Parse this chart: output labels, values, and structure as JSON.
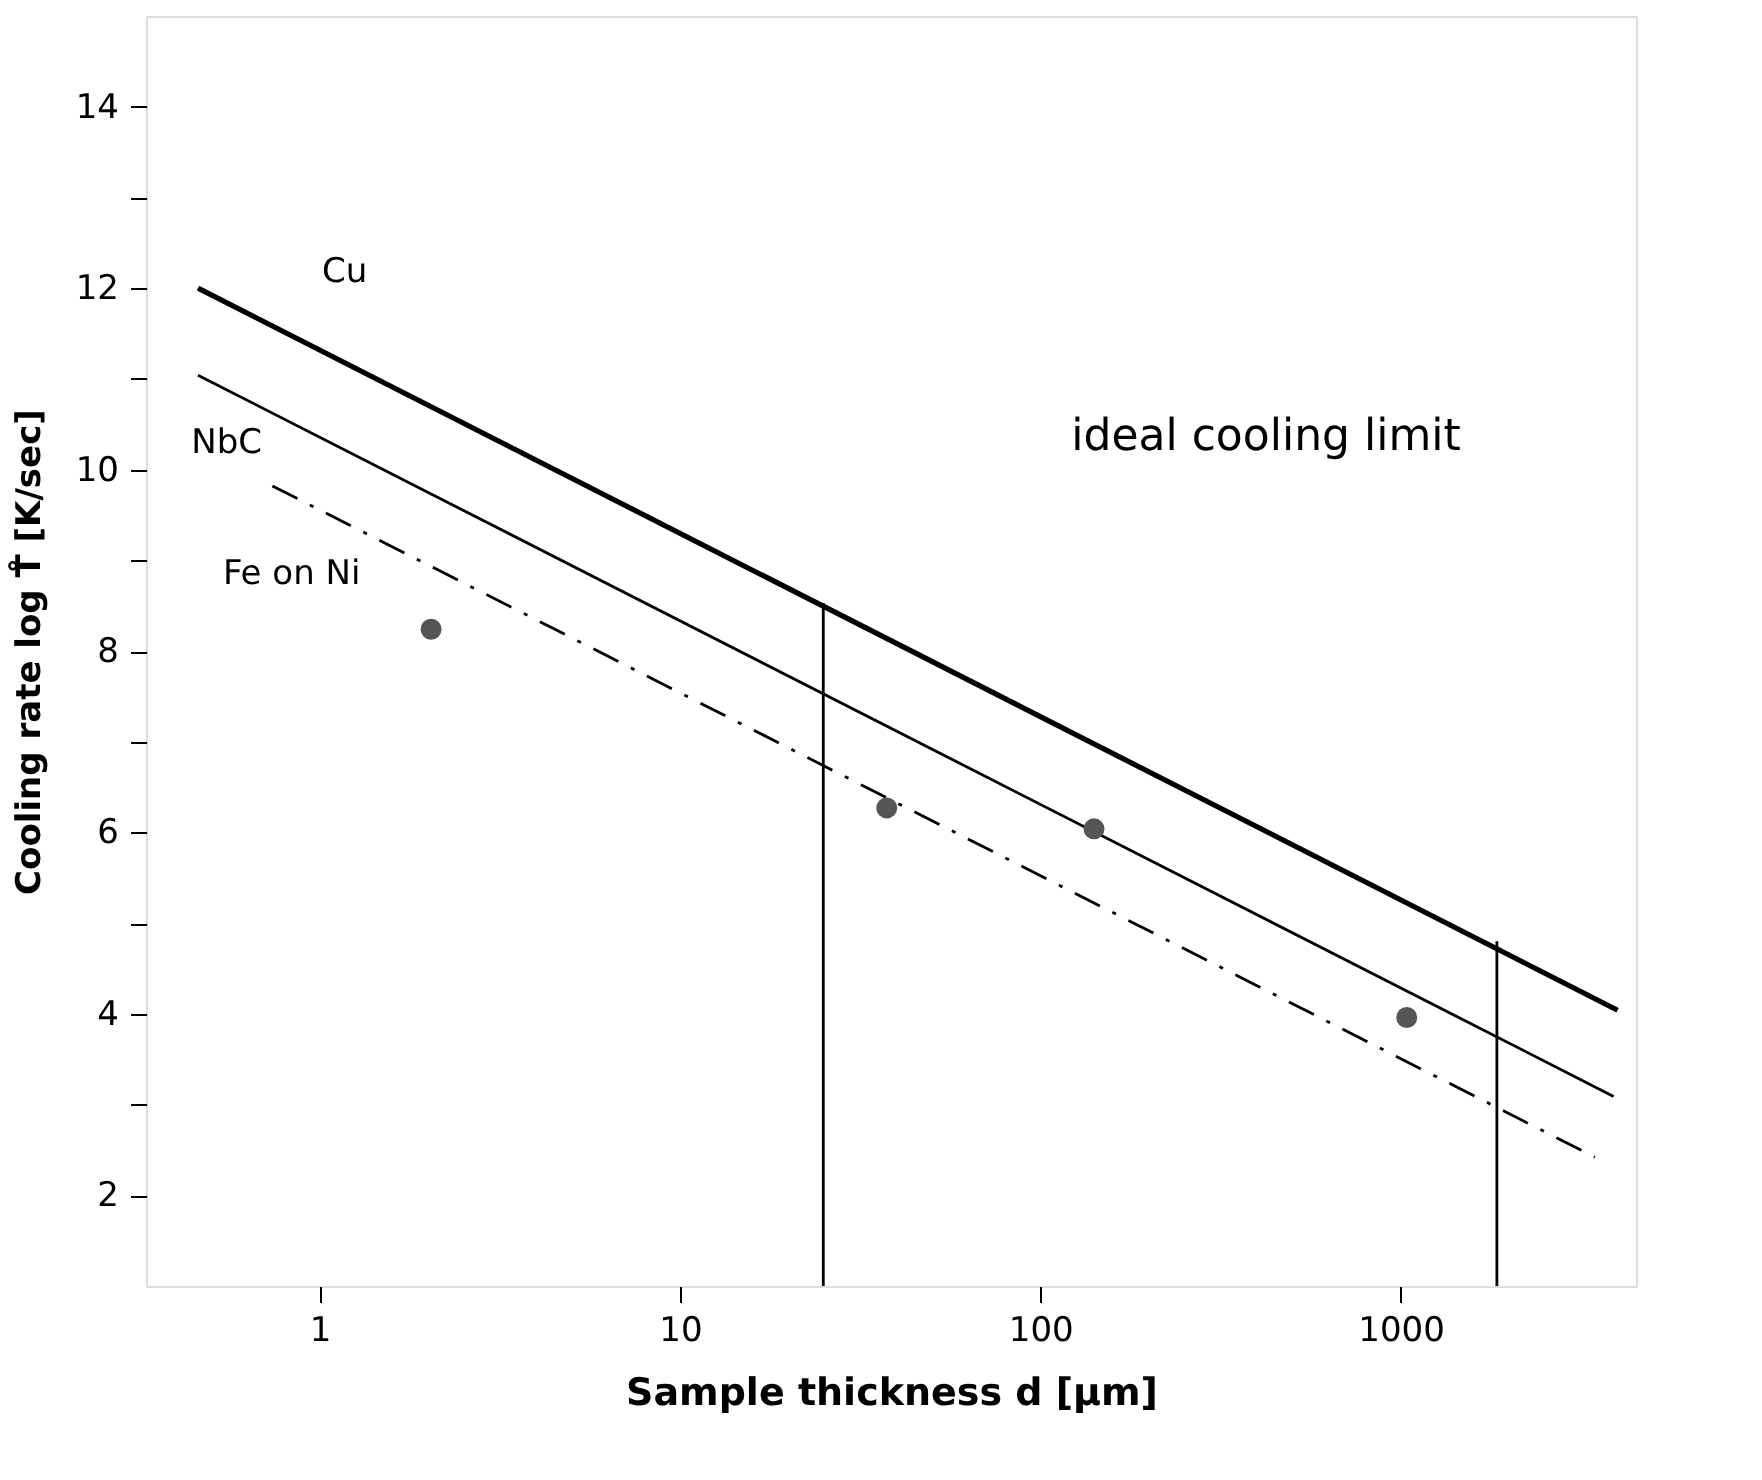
{
  "chart_data": {
    "type": "line",
    "xlabel": "Sample thickness  d [μm]",
    "ylabel": "Cooling rate  log T̊ [K/sec]",
    "log": "x",
    "xlim": [
      0.33,
      4500
    ],
    "xticks": [
      1,
      10,
      100,
      1000
    ],
    "ylim": [
      1,
      15
    ],
    "yticks": [
      2,
      {
        "value": 3,
        "label": null
      },
      4,
      {
        "value": 5,
        "label": null
      },
      6,
      {
        "value": 7,
        "label": null
      },
      8,
      {
        "value": 9,
        "label": null
      },
      10,
      {
        "value": 11,
        "label": null
      },
      12,
      {
        "value": 13,
        "label": null
      },
      14
    ],
    "grid": false,
    "annotations": [
      "ideal cooling limit"
    ],
    "series": [
      {
        "name": "Cu",
        "line_style": "solid",
        "color": "#000000",
        "x": [
          0.46,
          4000
        ],
        "values": [
          12.0,
          4.04
        ]
      },
      {
        "name": "NbC",
        "line_style": "solid",
        "color": "#000000",
        "x": [
          0.46,
          3900
        ],
        "values": [
          11.04,
          3.09
        ]
      },
      {
        "name": "Fe on Ni",
        "line_style": "dashed",
        "color": "#000000",
        "x": [
          0.74,
          3460
        ],
        "values": [
          9.82,
          2.42
        ]
      },
      {
        "line_style": "solid",
        "color": "#000000",
        "x": [
          25,
          25
        ],
        "values": [
          1,
          8.53
        ]
      },
      {
        "line_style": "solid",
        "color": "#000000",
        "x": [
          1850,
          1850
        ],
        "values": [
          1,
          4.8
        ]
      },
      {
        "type": "scatter",
        "marker": "circle",
        "color": "#555555",
        "x": [
          2.04,
          37.5,
          141,
          1040
        ],
        "values": [
          8.24,
          6.27,
          6.04,
          3.96
        ]
      }
    ]
  }
}
